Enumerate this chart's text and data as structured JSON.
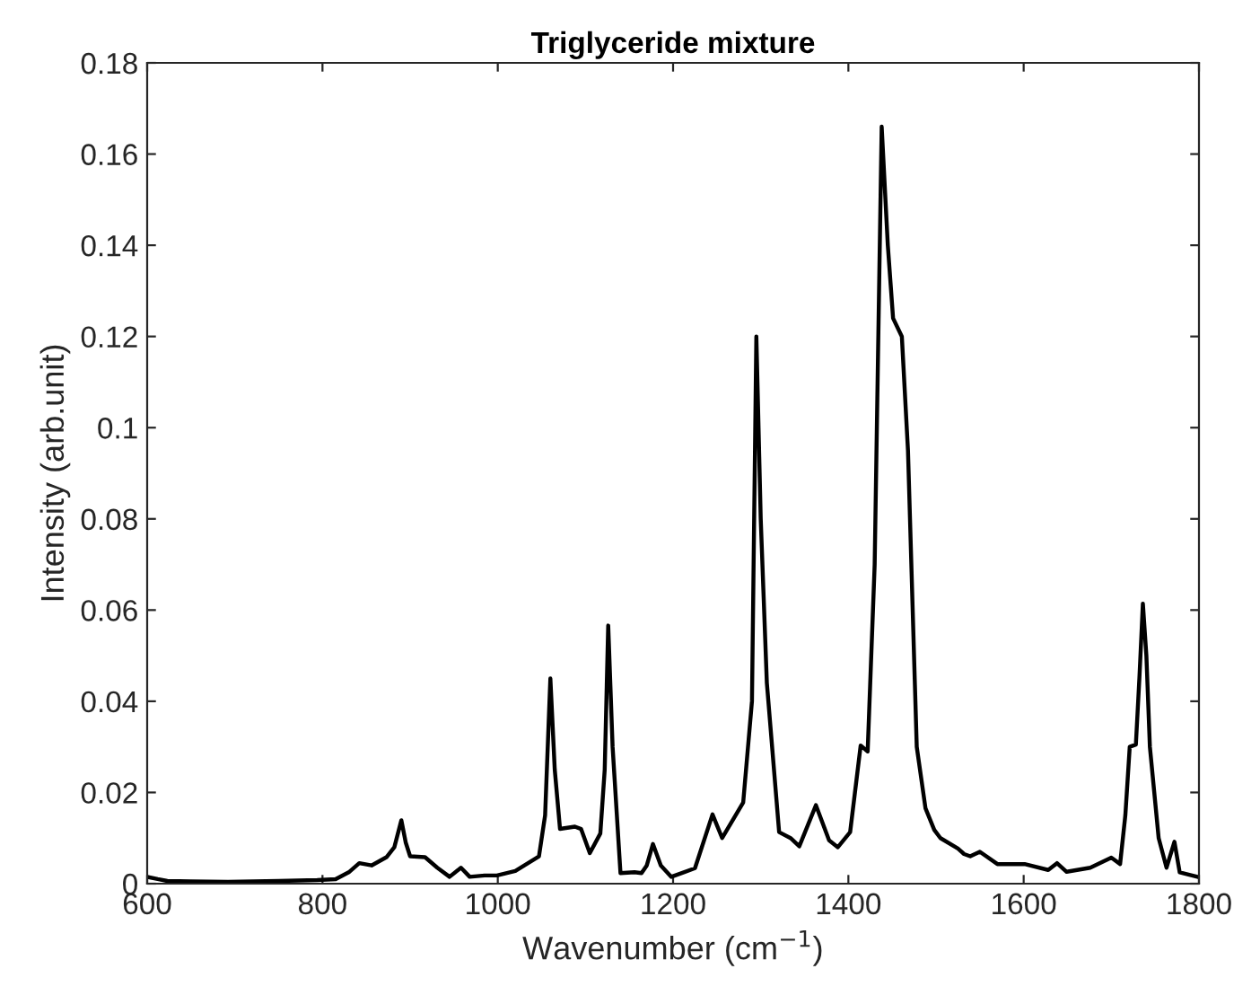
{
  "chart_data": {
    "type": "line",
    "title": "Triglyceride mixture",
    "xlabel": "Wavenumber (cm$^{−1}$)",
    "ylabel": "Intensity (arb.unit)",
    "xlim": [
      600,
      1800
    ],
    "ylim": [
      0,
      0.18
    ],
    "xticks": [
      600,
      800,
      1000,
      1200,
      1400,
      1600,
      1800
    ],
    "yticks": [
      0,
      0.02,
      0.04,
      0.06,
      0.08,
      0.1,
      0.12,
      0.14,
      0.16,
      0.18
    ],
    "grid": false,
    "legend": false,
    "marker": "none",
    "line_style": "solid",
    "series": [
      {
        "color": "#000000",
        "x": [
          600,
          612,
          623,
          650,
          692,
          750,
          794,
          815,
          830,
          842,
          856,
          873,
          882,
          890,
          895,
          900,
          917,
          931,
          945,
          958,
          968,
          985,
          999,
          1020,
          1047,
          1054,
          1060,
          1065,
          1071,
          1088,
          1095,
          1105,
          1117,
          1122,
          1126,
          1131,
          1140,
          1156,
          1164,
          1170,
          1177,
          1186,
          1198,
          1225,
          1245,
          1256,
          1280,
          1290,
          1295,
          1300,
          1307,
          1321,
          1334,
          1344,
          1363,
          1378,
          1388,
          1402,
          1414,
          1422,
          1430,
          1438,
          1445,
          1451,
          1461,
          1468,
          1478,
          1488,
          1498,
          1505,
          1525,
          1532,
          1539,
          1550,
          1570,
          1601,
          1628,
          1638,
          1649,
          1676,
          1700,
          1710,
          1716,
          1721,
          1728,
          1732,
          1736,
          1740,
          1744,
          1754,
          1763,
          1772,
          1778,
          1788,
          1798
        ],
        "values": [
          0.0015,
          0.001,
          0.0006,
          0.0005,
          0.0004,
          0.0006,
          0.0008,
          0.001,
          0.0025,
          0.0045,
          0.004,
          0.0058,
          0.008,
          0.0139,
          0.009,
          0.006,
          0.0058,
          0.0035,
          0.0015,
          0.0035,
          0.0015,
          0.0018,
          0.0018,
          0.0028,
          0.006,
          0.015,
          0.045,
          0.025,
          0.012,
          0.0125,
          0.012,
          0.0067,
          0.011,
          0.025,
          0.0566,
          0.03,
          0.0023,
          0.0025,
          0.0023,
          0.004,
          0.0087,
          0.004,
          0.0015,
          0.0034,
          0.0152,
          0.01,
          0.0178,
          0.04,
          0.12,
          0.08,
          0.044,
          0.0113,
          0.01,
          0.0082,
          0.0172,
          0.0095,
          0.008,
          0.0113,
          0.0303,
          0.029,
          0.07,
          0.166,
          0.14,
          0.124,
          0.12,
          0.095,
          0.03,
          0.0165,
          0.0118,
          0.01,
          0.0077,
          0.0065,
          0.006,
          0.007,
          0.0043,
          0.0043,
          0.003,
          0.0045,
          0.0026,
          0.0035,
          0.0057,
          0.0043,
          0.015,
          0.03,
          0.0305,
          0.045,
          0.0614,
          0.05,
          0.03,
          0.01,
          0.0035,
          0.0092,
          0.0025,
          0.002,
          0.0015
        ]
      }
    ]
  }
}
